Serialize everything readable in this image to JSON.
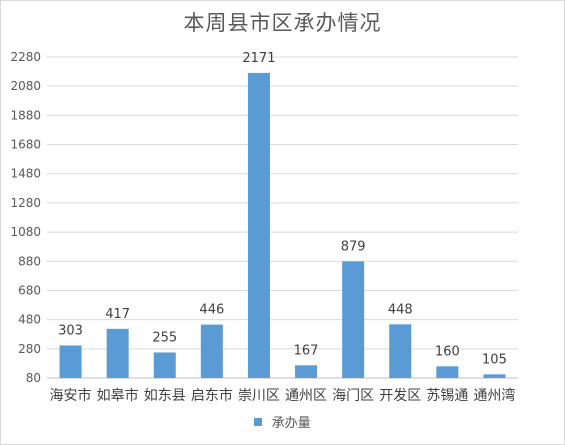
{
  "chart_data": {
    "type": "bar",
    "title": "本周县市区承办情况",
    "categories": [
      "海安市",
      "如皋市",
      "如东县",
      "启东市",
      "崇川区",
      "通州区",
      "海门区",
      "开发区",
      "苏锡通",
      "通州湾"
    ],
    "series": [
      {
        "name": "承办量",
        "values": [
          303,
          417,
          255,
          446,
          2171,
          167,
          879,
          448,
          160,
          105
        ]
      }
    ],
    "y_ticks": [
      80,
      280,
      480,
      680,
      880,
      1080,
      1280,
      1480,
      1680,
      1880,
      2080,
      2280
    ],
    "ylim": [
      80,
      2280
    ],
    "grid": true,
    "legend_position": "bottom",
    "bar_color": "#5b9bd5"
  }
}
